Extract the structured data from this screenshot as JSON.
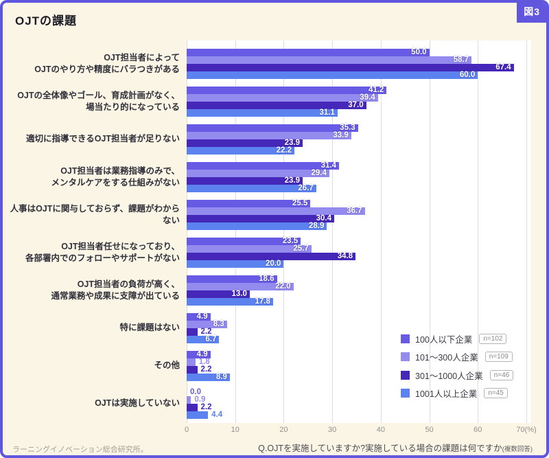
{
  "figure_tag": "図3",
  "title": "OJTの課題",
  "question": "Q.OJTを実施していますか?実施している場合の課題は何ですか",
  "question_note": "(複数回答)",
  "source": "ラーニングイノベーション総合研究所。",
  "colors": {
    "frame": "#6157DF",
    "background": "#FBF5E5",
    "plot_background": "#FFFFFF",
    "gridline": "#DCDCDC",
    "tick_text": "#8F8F8F",
    "category_text": "#30303A"
  },
  "chart_data": {
    "type": "bar",
    "orientation": "horizontal",
    "grid": true,
    "xlim": [
      0,
      70
    ],
    "ticks": [
      0,
      10,
      20,
      30,
      40,
      50,
      60,
      70
    ],
    "tick_labels": [
      "0",
      "10",
      "20",
      "30",
      "40",
      "50",
      "60",
      "70(%)"
    ],
    "legend_position": "bottom-right",
    "categories": [
      "OJT担当者によって\nOJTのやり方や精度にバラつきがある",
      "OJTの全体像やゴール、育成計画がなく、\n場当たり的になっている",
      "適切に指導できるOJT担当者が足りない",
      "OJT担当者は業務指導のみで、\nメンタルケアをする仕組みがない",
      "人事はOJTに関与しておらず、課題がわからない",
      "OJT担当者任せになっており、\n各部署内でのフォローやサポートがない",
      "OJT担当者の負荷が高く、\n通常業務や成果に支障が出ている",
      "特に課題はない",
      "その他",
      "OJTは実施していない"
    ],
    "series": [
      {
        "name": "100人以下企業",
        "n_label": "n=102",
        "color": "#675AE4",
        "values": [
          50.0,
          41.2,
          35.3,
          31.4,
          25.5,
          23.5,
          18.6,
          4.9,
          4.9,
          0.0
        ]
      },
      {
        "name": "101〜300人企業",
        "n_label": "n=109",
        "color": "#948BEE",
        "values": [
          58.7,
          39.4,
          33.9,
          29.4,
          36.7,
          25.7,
          22.0,
          8.3,
          1.8,
          0.9
        ]
      },
      {
        "name": "301〜1000人企業",
        "n_label": "n=46",
        "color": "#4527BA",
        "values": [
          67.4,
          37.0,
          23.9,
          23.9,
          30.4,
          34.8,
          13.0,
          2.2,
          2.2,
          2.2
        ]
      },
      {
        "name": "1001人以上企業",
        "n_label": "n=45",
        "color": "#5C82F0",
        "values": [
          60.0,
          31.1,
          22.2,
          26.7,
          28.9,
          20.0,
          17.8,
          6.7,
          8.9,
          4.4
        ]
      }
    ]
  }
}
